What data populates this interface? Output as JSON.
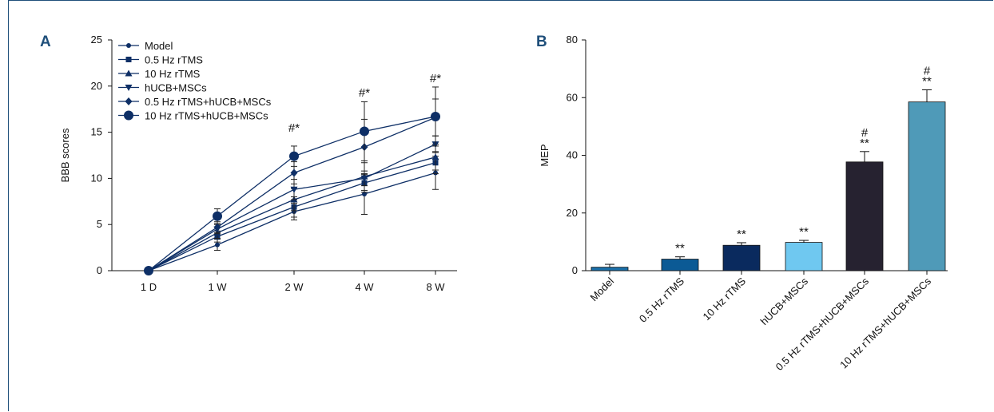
{
  "chart_data": [
    {
      "panel": "A",
      "type": "line",
      "xlabel": "",
      "ylabel": "BBB scores",
      "ylim": [
        0,
        25
      ],
      "yticks": [
        0,
        5,
        10,
        15,
        20,
        25
      ],
      "categories": [
        "1 D",
        "1 W",
        "2 W",
        "4 W",
        "8 W"
      ],
      "legend_position": "top-left",
      "series": [
        {
          "name": "Model",
          "marker": "circle-small",
          "values": [
            0,
            2.8,
            6.4,
            8.3,
            10.6
          ],
          "errors": [
            0,
            0.6,
            0.9,
            2.2,
            1.8
          ]
        },
        {
          "name": "0.5 Hz rTMS",
          "marker": "square",
          "values": [
            0,
            3.7,
            6.9,
            9.5,
            11.7
          ],
          "errors": [
            0,
            0.6,
            1.1,
            1.0,
            1.2
          ]
        },
        {
          "name": "10 Hz rTMS",
          "marker": "triangle-up",
          "values": [
            0,
            4.1,
            7.7,
            10.2,
            12.3
          ],
          "errors": [
            0,
            0.6,
            1.2,
            1.5,
            1.4
          ]
        },
        {
          "name": "hUCB+MSCs",
          "marker": "triangle-down",
          "values": [
            0,
            4.5,
            8.8,
            10.0,
            13.7
          ],
          "errors": [
            0,
            0.5,
            1.1,
            0.8,
            0.9
          ]
        },
        {
          "name": "0.5 Hz rTMS+hUCB+MSCs",
          "marker": "diamond",
          "values": [
            0,
            4.7,
            10.6,
            13.4,
            16.6
          ],
          "errors": [
            0,
            0.6,
            1.2,
            3.0,
            2.0
          ]
        },
        {
          "name": "10 Hz rTMS+hUCB+MSCs",
          "marker": "circle-large",
          "values": [
            0,
            5.9,
            12.4,
            15.1,
            16.7
          ],
          "errors": [
            0,
            0.8,
            1.1,
            3.2,
            3.2
          ]
        }
      ],
      "annotations": [
        {
          "category": "2 W",
          "text": "#*"
        },
        {
          "category": "4 W",
          "text": "#*"
        },
        {
          "category": "8 W",
          "text": "#*"
        }
      ]
    },
    {
      "panel": "B",
      "type": "bar",
      "xlabel": "",
      "ylabel": "MEP",
      "ylim": [
        0,
        80
      ],
      "yticks": [
        0,
        20,
        40,
        60,
        80
      ],
      "categories": [
        "Model",
        "0.5 Hz rTMS",
        "10 Hz rTMS",
        "hUCB+MSCs",
        "0.5 Hz rTMS+hUCB+MSCs",
        "10 Hz rTMS+hUCB+MSCs"
      ],
      "values": [
        1.2,
        4.0,
        8.8,
        9.8,
        37.7,
        58.5
      ],
      "errors": [
        1.0,
        0.8,
        0.9,
        0.7,
        3.6,
        4.2
      ],
      "colors": [
        "#1a6fa8",
        "#0b5a95",
        "#0a2a5e",
        "#6fc8f0",
        "#262230",
        "#4f9ab8"
      ],
      "annotations": [
        {
          "category": "Model",
          "lines": []
        },
        {
          "category": "0.5 Hz rTMS",
          "lines": [
            "**"
          ]
        },
        {
          "category": "10 Hz rTMS",
          "lines": [
            "**"
          ]
        },
        {
          "category": "hUCB+MSCs",
          "lines": [
            "**"
          ]
        },
        {
          "category": "0.5 Hz rTMS+hUCB+MSCs",
          "lines": [
            "#",
            "**"
          ]
        },
        {
          "category": "10 Hz rTMS+hUCB+MSCs",
          "lines": [
            "#",
            "**"
          ]
        }
      ]
    }
  ]
}
